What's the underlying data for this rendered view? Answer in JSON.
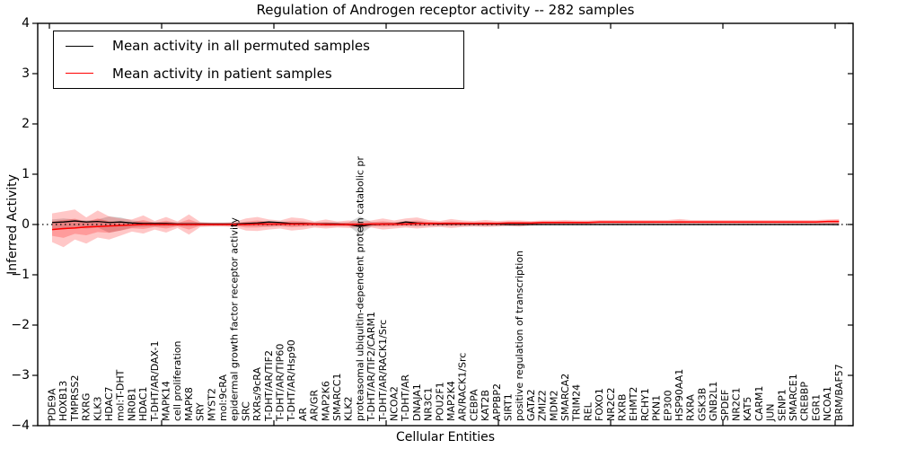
{
  "title": "Regulation of Androgen receptor activity -- 282 samples",
  "sample_count": 282,
  "axes": {
    "ylabel": "Inferred Activity",
    "xlabel": "Cellular Entities",
    "yticks": [
      4,
      3,
      2,
      1,
      0,
      -1,
      -2,
      -3,
      -4
    ],
    "ylim": [
      -4,
      4
    ]
  },
  "legend": {
    "items": [
      {
        "label": "Mean activity in all permuted samples",
        "color": "#000000"
      },
      {
        "label": "Mean activity in patient samples",
        "color": "#ff0000"
      }
    ]
  },
  "colors": {
    "permuted_line": "#000000",
    "patient_line": "#ff0000",
    "patient_band": "rgba(255,0,0,0.22)",
    "permuted_band": "rgba(128,128,128,0.32)",
    "zero_line": "#000000",
    "frame": "#000000"
  },
  "chart_data": {
    "type": "line",
    "title": "Regulation of Androgen receptor activity -- 282 samples",
    "xlabel": "Cellular Entities",
    "ylabel": "Inferred Activity",
    "ylim": [
      -4,
      4
    ],
    "grid": false,
    "legend_position": "upper left",
    "zero_reference_line": 0,
    "categories": [
      "PDE9A",
      "HOXB13",
      "TMPRSS2",
      "RXRG",
      "KLK3",
      "HDAC7",
      "mol:T-DHT",
      "NR0B1",
      "HDAC1",
      "T-DHT/AR/DAX-1",
      "MAPK14",
      "cell proliferation",
      "MAPK8",
      "SRY",
      "MYST2",
      "mol:9cRA",
      "epidermal growth factor receptor activity",
      "SRC",
      "RXRs/9cRA",
      "T-DHT/AR/TIF2",
      "T-DHT/AR/TIP60",
      "T-DHT/AR/Hsp90",
      "AR",
      "AR/GR",
      "MAP2K6",
      "SMARCC1",
      "KLK2",
      "proteasomal ubiquitin-dependent protein catabolic pr",
      "T-DHT/AR/TIF2/CARM1",
      "T-DHT/AR/RACK1/Src",
      "NCOA2",
      "T-DHT/AR",
      "DNAJA1",
      "NR3C1",
      "POU2F1",
      "MAP2K4",
      "AR/RACK1/Src",
      "CEBPA",
      "KAT2B",
      "APPBP2",
      "SIRT1",
      "positive regulation of transcription",
      "GATA2",
      "ZMIZ2",
      "MDM2",
      "SMARCA2",
      "TRIM24",
      "REL",
      "FOXO1",
      "NR2C2",
      "RXRB",
      "EHMT2",
      "RCHY1",
      "PKN1",
      "EP300",
      "HSP90AA1",
      "RXRA",
      "GSK3B",
      "GNB2L1",
      "SPDEF",
      "NR2C1",
      "KAT5",
      "CARM1",
      "JUN",
      "SENP1",
      "SMARCE1",
      "CREBBP",
      "EGR1",
      "NCOA1",
      "BRM/BAF57"
    ],
    "series": [
      {
        "name": "Mean activity in all permuted samples",
        "color": "#000000",
        "values": [
          0.04,
          0.05,
          0.07,
          0.05,
          0.06,
          0.04,
          0.05,
          0.03,
          0.02,
          0.02,
          0.02,
          0.01,
          0.01,
          0.01,
          0.01,
          0.01,
          0.01,
          0.02,
          0.03,
          0.05,
          0.04,
          0.02,
          0.02,
          0.01,
          0.01,
          0.01,
          0.0,
          -0.04,
          0.0,
          0.01,
          0.01,
          0.05,
          0.03,
          0.02,
          0.01,
          0.01,
          0.01,
          0.01,
          0.01,
          0.01,
          0,
          0,
          0,
          0,
          0,
          0,
          0,
          0,
          0,
          0,
          0,
          0,
          0,
          0,
          0,
          0,
          0,
          0,
          0,
          0,
          0,
          0,
          0,
          0,
          0,
          0,
          0,
          0,
          0,
          0
        ]
      },
      {
        "name": "Mean activity in patient samples",
        "color": "#ff0000",
        "values": [
          -0.1,
          -0.08,
          -0.07,
          -0.05,
          -0.04,
          -0.03,
          -0.02,
          -0.01,
          0.0,
          0.0,
          0.0,
          0.0,
          0.0,
          0.0,
          0.0,
          0.0,
          0.0,
          0.0,
          0.01,
          0.01,
          0.01,
          0.01,
          0.01,
          0.01,
          0.0,
          0.0,
          0.0,
          0.0,
          0.01,
          0.01,
          0.01,
          0.01,
          0.02,
          0.02,
          0.02,
          0.02,
          0.02,
          0.02,
          0.02,
          0.02,
          0.03,
          0.03,
          0.03,
          0.04,
          0.04,
          0.04,
          0.04,
          0.04,
          0.05,
          0.05,
          0.05,
          0.05,
          0.05,
          0.05,
          0.05,
          0.05,
          0.05,
          0.05,
          0.05,
          0.05,
          0.05,
          0.05,
          0.05,
          0.05,
          0.05,
          0.05,
          0.05,
          0.05,
          0.06,
          0.06
        ]
      }
    ],
    "bands": [
      {
        "name": "permuted samples spread",
        "color": "rgba(128,128,128,0.32)",
        "upper": [
          0.1,
          0.12,
          0.1,
          0.08,
          0.1,
          0.16,
          0.14,
          0.08,
          0.06,
          0.05,
          0.05,
          0.04,
          0.05,
          0.04,
          0.03,
          0.03,
          0.03,
          0.04,
          0.04,
          0.05,
          0.04,
          0.04,
          0.04,
          0.04,
          0.04,
          0.04,
          0.04,
          0.16,
          0.05,
          0.04,
          0.04,
          0.04,
          0.05,
          0.04,
          0.04,
          0.04,
          0.04,
          0.03,
          0.03,
          0.03,
          0.03,
          0.03,
          0.03,
          0.03,
          0.03,
          0.03,
          0.03,
          0.03,
          0.03,
          0.03,
          0.03,
          0.03,
          0.03,
          0.02,
          0.02,
          0.02,
          0.02,
          0.02,
          0.02,
          0.02,
          0.02,
          0.02,
          0.02,
          0.02,
          0.02,
          0.02,
          0.02,
          0.02,
          0.03,
          0.03
        ],
        "lower": [
          -0.08,
          -0.1,
          -0.06,
          -0.08,
          -0.06,
          -0.16,
          -0.12,
          -0.06,
          -0.05,
          -0.04,
          -0.04,
          -0.03,
          -0.04,
          -0.03,
          -0.03,
          -0.03,
          -0.03,
          -0.03,
          -0.03,
          -0.04,
          -0.03,
          -0.03,
          -0.03,
          -0.03,
          -0.03,
          -0.03,
          -0.03,
          -0.2,
          -0.04,
          -0.03,
          -0.03,
          -0.03,
          -0.04,
          -0.03,
          -0.03,
          -0.03,
          -0.03,
          -0.03,
          -0.03,
          -0.03,
          -0.03,
          -0.03,
          -0.02,
          -0.02,
          -0.02,
          -0.02,
          -0.02,
          -0.02,
          -0.02,
          -0.02,
          -0.02,
          -0.02,
          -0.02,
          -0.02,
          -0.02,
          -0.02,
          -0.02,
          -0.02,
          -0.02,
          -0.02,
          -0.02,
          -0.02,
          -0.02,
          -0.02,
          -0.02,
          -0.02,
          -0.02,
          -0.02,
          -0.02,
          -0.03
        ]
      },
      {
        "name": "patient samples spread",
        "color": "rgba(255,0,0,0.22)",
        "upper": [
          0.22,
          0.26,
          0.3,
          0.14,
          0.28,
          0.16,
          0.12,
          0.1,
          0.18,
          0.07,
          0.15,
          0.06,
          0.2,
          0.05,
          0.04,
          0.04,
          0.05,
          0.12,
          0.15,
          0.1,
          0.08,
          0.14,
          0.12,
          0.06,
          0.1,
          0.06,
          0.08,
          0.06,
          0.08,
          0.12,
          0.08,
          0.12,
          0.14,
          0.09,
          0.07,
          0.11,
          0.08,
          0.07,
          0.09,
          0.07,
          0.08,
          0.08,
          0.07,
          0.08,
          0.08,
          0.09,
          0.08,
          0.08,
          0.09,
          0.09,
          0.09,
          0.09,
          0.09,
          0.09,
          0.09,
          0.11,
          0.09,
          0.09,
          0.09,
          0.09,
          0.09,
          0.09,
          0.09,
          0.09,
          0.09,
          0.09,
          0.09,
          0.09,
          0.1,
          0.11
        ],
        "lower": [
          -0.35,
          -0.45,
          -0.3,
          -0.38,
          -0.26,
          -0.3,
          -0.22,
          -0.14,
          -0.18,
          -0.1,
          -0.16,
          -0.07,
          -0.2,
          -0.05,
          -0.04,
          -0.04,
          -0.05,
          -0.12,
          -0.13,
          -0.1,
          -0.08,
          -0.12,
          -0.1,
          -0.06,
          -0.08,
          -0.06,
          -0.07,
          -0.06,
          -0.06,
          -0.1,
          -0.08,
          -0.06,
          -0.08,
          -0.06,
          -0.05,
          -0.07,
          -0.05,
          -0.04,
          -0.05,
          -0.04,
          -0.03,
          -0.04,
          -0.02,
          -0.01,
          -0.01,
          0.0,
          0.0,
          0.0,
          0.01,
          0.01,
          0.01,
          0.01,
          0.01,
          0.01,
          0.01,
          0.0,
          0.01,
          0.01,
          0.01,
          0.01,
          0.01,
          0.01,
          0.01,
          0.01,
          0.01,
          0.01,
          0.01,
          0.01,
          0.01,
          0.0
        ]
      }
    ]
  }
}
